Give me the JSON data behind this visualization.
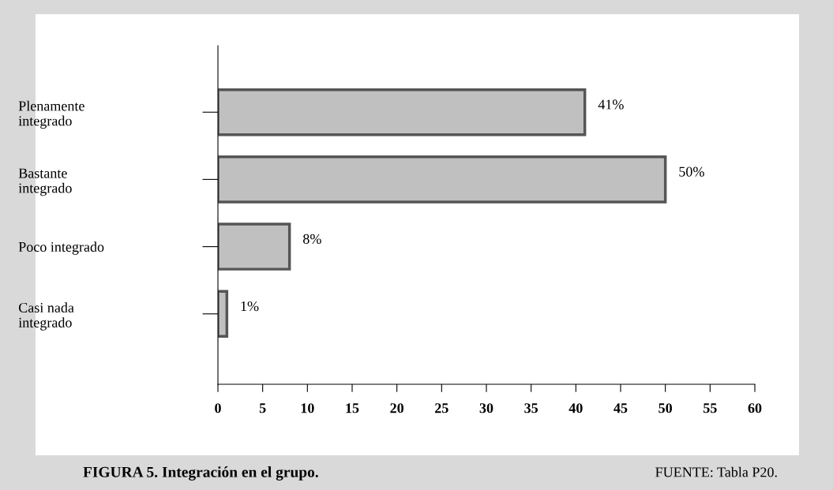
{
  "chart_data": {
    "type": "bar",
    "orientation": "horizontal",
    "categories": [
      "Plenamente\nintegrado",
      "Bastante\nintegrado",
      "Poco integrado",
      "Casi nada\nintegrado"
    ],
    "values": [
      41,
      50,
      8,
      1
    ],
    "value_labels": [
      "41%",
      "50%",
      "8%",
      "1%"
    ],
    "color": "#c0c0c0",
    "xlim": [
      0,
      60
    ],
    "xticks": [
      0,
      5,
      10,
      15,
      20,
      25,
      30,
      35,
      40,
      45,
      50,
      55,
      60
    ],
    "grid": false,
    "legend": false,
    "annotations": [
      "FIGURA 5. Integración en el grupo.",
      "FUENTE: Tabla P20."
    ]
  }
}
